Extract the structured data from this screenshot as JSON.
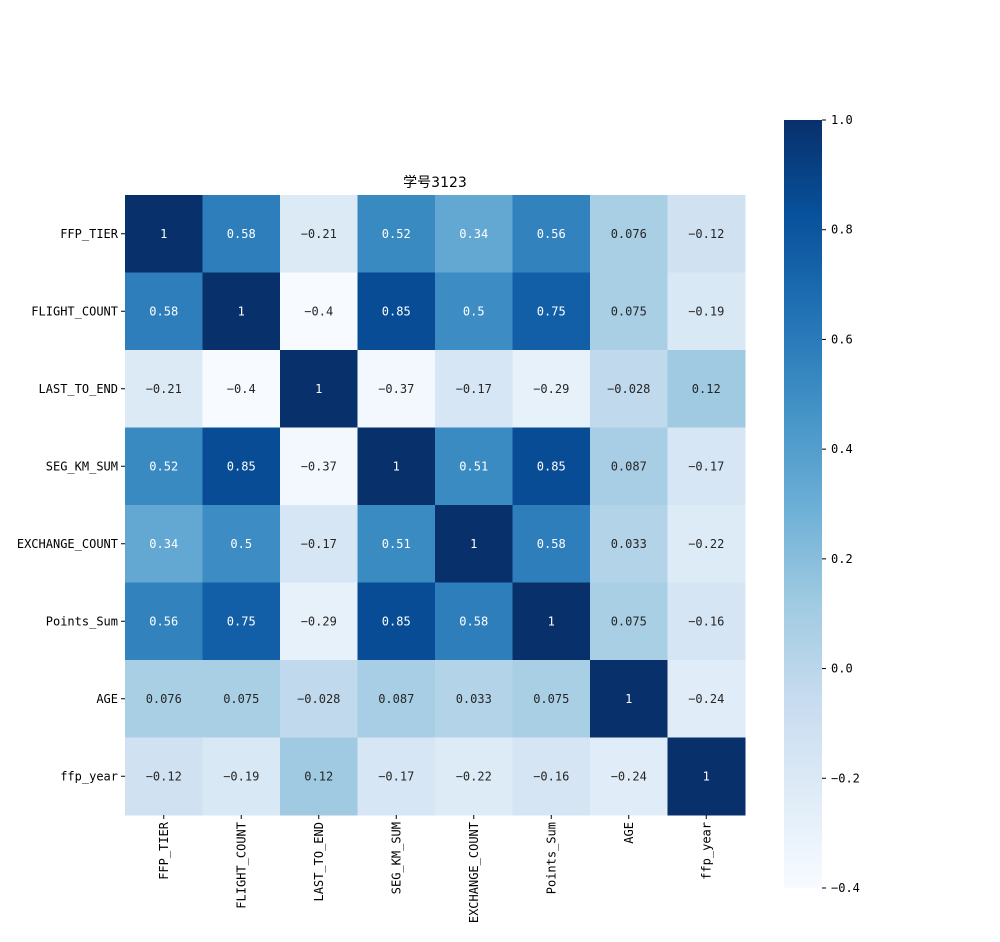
{
  "chart_data": {
    "type": "heatmap",
    "title": "学号3123",
    "colormap": "Blues",
    "vmin": -0.4,
    "vmax": 1.0,
    "labels": [
      "FFP_TIER",
      "FLIGHT_COUNT",
      "LAST_TO_END",
      "SEG_KM_SUM",
      "EXCHANGE_COUNT",
      "Points_Sum",
      "AGE",
      "ffp_year"
    ],
    "matrix": [
      [
        1,
        0.58,
        -0.21,
        0.52,
        0.34,
        0.56,
        0.076,
        -0.12
      ],
      [
        0.58,
        1,
        -0.4,
        0.85,
        0.5,
        0.75,
        0.075,
        -0.19
      ],
      [
        -0.21,
        -0.4,
        1,
        -0.37,
        -0.17,
        -0.29,
        -0.028,
        0.12
      ],
      [
        0.52,
        0.85,
        -0.37,
        1,
        0.51,
        0.85,
        0.087,
        -0.17
      ],
      [
        0.34,
        0.5,
        -0.17,
        0.51,
        1,
        0.58,
        0.033,
        -0.22
      ],
      [
        0.56,
        0.75,
        -0.29,
        0.85,
        0.58,
        1,
        0.075,
        -0.16
      ],
      [
        0.076,
        0.075,
        -0.028,
        0.087,
        0.033,
        0.075,
        1,
        -0.24
      ],
      [
        -0.12,
        -0.19,
        0.12,
        -0.17,
        -0.22,
        -0.16,
        -0.24,
        1
      ]
    ],
    "colorbar_ticks": [
      -0.4,
      -0.2,
      0.0,
      0.2,
      0.4,
      0.6,
      0.8,
      1.0
    ],
    "colorbar_tick_labels": [
      "−0.4",
      "−0.2",
      "0.0",
      "0.2",
      "0.4",
      "0.6",
      "0.8",
      "1.0"
    ]
  }
}
